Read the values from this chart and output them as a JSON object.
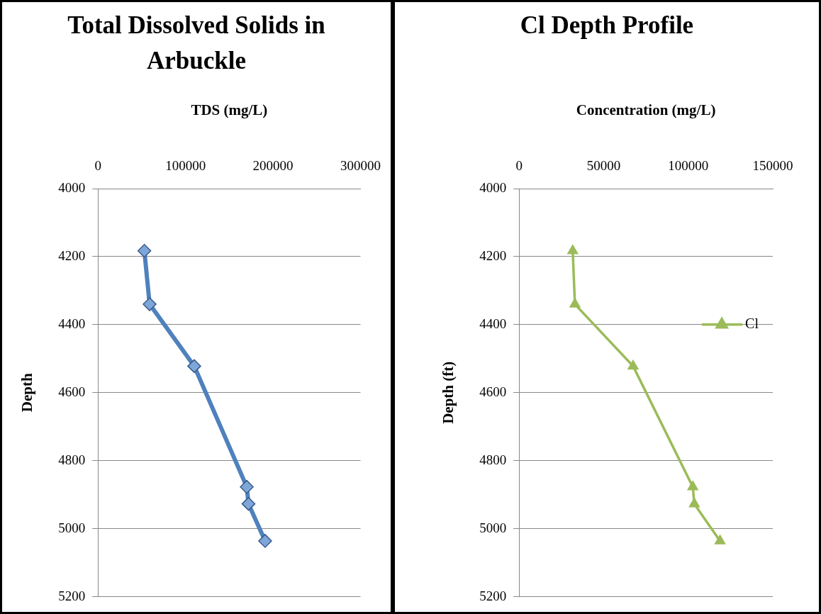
{
  "chart_data": [
    {
      "type": "line",
      "title": "Total Dissolved Solids in Arbuckle",
      "xlabel": "TDS (mg/L)",
      "ylabel": "Depth",
      "xlim": [
        0,
        300000
      ],
      "xticks": [
        0,
        100000,
        200000,
        300000
      ],
      "ylim": [
        5200,
        4000
      ],
      "yticks": [
        4000,
        4200,
        4400,
        4600,
        4800,
        5000,
        5200
      ],
      "grid": "y",
      "marker": "diamond",
      "series": [
        {
          "color": "#4f81bd",
          "x": [
            53000,
            59000,
            110000,
            170000,
            172000,
            191000
          ],
          "values": [
            4183,
            4340,
            4522,
            4877,
            4927,
            5036
          ]
        }
      ]
    },
    {
      "type": "line",
      "title": "Cl Depth Profile",
      "xlabel": "Concentration (mg/L)",
      "ylabel": "Depth (ft)",
      "xlim": [
        0,
        150000
      ],
      "xticks": [
        0,
        50000,
        100000,
        150000
      ],
      "ylim": [
        5200,
        4000
      ],
      "yticks": [
        4000,
        4200,
        4400,
        4600,
        4800,
        5000,
        5200
      ],
      "grid": "y",
      "marker": "triangle",
      "legend": "right",
      "series": [
        {
          "name": "Cl",
          "color": "#9bbb59",
          "x": [
            31700,
            33000,
            67400,
            102700,
            103600,
            118800
          ],
          "values": [
            4183,
            4340,
            4522,
            4877,
            4927,
            5036
          ]
        }
      ]
    }
  ]
}
